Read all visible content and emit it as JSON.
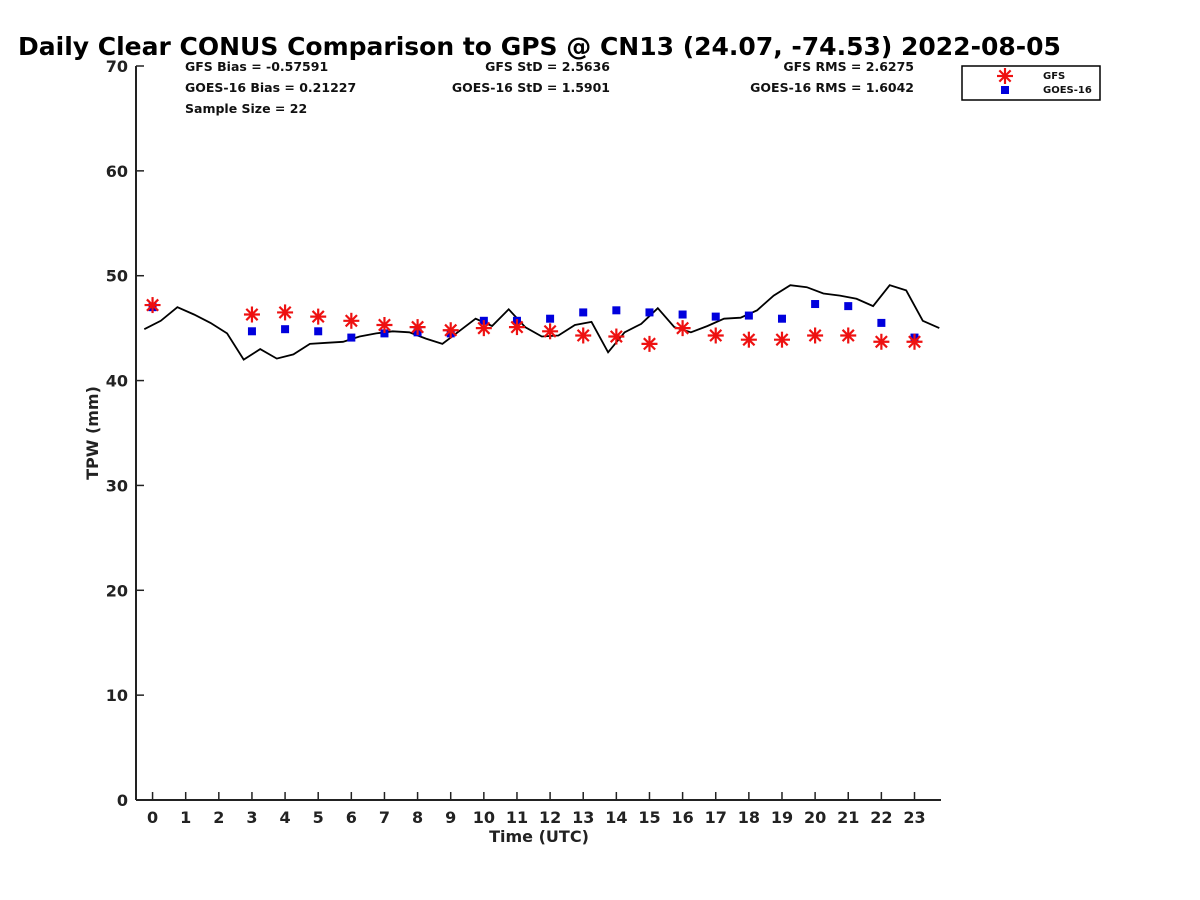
{
  "chart_data": {
    "type": "scatter",
    "title": "Daily Clear CONUS Comparison to GPS @ CN13 (24.07, -74.53) 2022-08-05",
    "xlabel": "Time (UTC)",
    "ylabel": "TPW (mm)",
    "xlim": [
      -0.5,
      23.8
    ],
    "ylim": [
      0,
      70
    ],
    "xticks": [
      0,
      1,
      2,
      3,
      4,
      5,
      6,
      7,
      8,
      9,
      10,
      11,
      12,
      13,
      14,
      15,
      16,
      17,
      18,
      19,
      20,
      21,
      22,
      23
    ],
    "yticks": [
      0,
      10,
      20,
      30,
      40,
      50,
      60,
      70
    ],
    "legend_position": "top-right",
    "stats": {
      "gfs_bias": "GFS Bias = -0.57591",
      "goes_bias": "GOES-16 Bias = 0.21227",
      "sample_size": "Sample Size = 22",
      "gfs_std": "GFS StD = 2.5636",
      "goes_std": "GOES-16 StD = 1.5901",
      "gfs_rms": "GFS RMS = 2.6275",
      "goes_rms": "GOES-16 RMS = 1.6042"
    },
    "series": [
      {
        "name": "GFS",
        "marker": "asterisk",
        "color": "#ee1111",
        "x": [
          0,
          3,
          4,
          5,
          6,
          7,
          8,
          9,
          10,
          11,
          12,
          13,
          14,
          15,
          16,
          17,
          18,
          19,
          20,
          21,
          22,
          23
        ],
        "y": [
          47.2,
          46.3,
          46.5,
          46.1,
          45.7,
          45.3,
          45.1,
          44.8,
          45.0,
          45.1,
          44.7,
          44.3,
          44.2,
          43.5,
          45.0,
          44.3,
          43.9,
          43.9,
          44.3,
          44.3,
          43.7,
          43.7
        ]
      },
      {
        "name": "GOES-16",
        "marker": "square",
        "color": "#0000dd",
        "x": [
          0,
          3,
          4,
          5,
          6,
          7,
          8,
          9,
          10,
          11,
          12,
          13,
          14,
          15,
          16,
          17,
          18,
          19,
          20,
          21,
          22,
          23
        ],
        "y": [
          47.0,
          44.7,
          44.9,
          44.7,
          44.1,
          44.5,
          44.6,
          44.5,
          45.7,
          45.7,
          45.9,
          46.5,
          46.7,
          46.5,
          46.3,
          46.1,
          46.2,
          45.9,
          47.3,
          47.1,
          45.5,
          44.1
        ]
      },
      {
        "name": "GPS",
        "marker": "line",
        "color": "#000000",
        "x": [
          -0.25,
          0.25,
          0.75,
          1.25,
          1.75,
          2.25,
          2.75,
          3.25,
          3.75,
          4.25,
          4.75,
          5.25,
          5.75,
          6.25,
          6.75,
          7.25,
          7.75,
          8.25,
          8.75,
          9.25,
          9.75,
          10.25,
          10.75,
          11.25,
          11.75,
          12.25,
          12.75,
          13.25,
          13.75,
          14.25,
          14.75,
          15.25,
          15.75,
          16.25,
          16.75,
          17.25,
          17.75,
          18.25,
          18.75,
          19.25,
          19.75,
          20.25,
          20.75,
          21.25,
          21.75,
          22.25,
          22.75,
          23.25,
          23.75
        ],
        "y": [
          44.9,
          45.7,
          47.0,
          46.3,
          45.5,
          44.5,
          42.0,
          43.0,
          42.1,
          42.5,
          43.5,
          43.6,
          43.7,
          44.2,
          44.5,
          44.7,
          44.6,
          44.0,
          43.5,
          44.7,
          45.9,
          45.2,
          46.8,
          45.1,
          44.2,
          44.3,
          45.3,
          45.6,
          42.7,
          44.6,
          45.4,
          46.9,
          45.1,
          44.6,
          45.2,
          45.9,
          46.0,
          46.7,
          48.1,
          49.1,
          48.9,
          48.3,
          48.1,
          47.8,
          47.1,
          49.1,
          48.6,
          45.7,
          45.0
        ]
      }
    ]
  }
}
